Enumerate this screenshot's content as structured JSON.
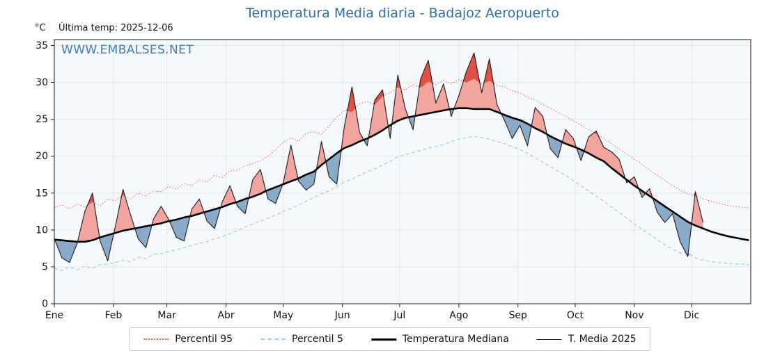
{
  "header": {
    "title": "Temperatura Media diaria - Badajoz Aeropuerto",
    "unit_label": "°C",
    "last_temp_label": "Última temp: 2025-12-06",
    "watermark": "WWW.EMBALSES.NET"
  },
  "colors": {
    "title": "#2e6ea6",
    "watermark": "#2e6ea6",
    "p95_line": "#e15759",
    "p5_line": "#9ecae1",
    "median_line": "#000000",
    "media2025_line": "#1a1a1a",
    "fill_above": "#f2a49e",
    "fill_above_extreme": "#dd5146",
    "fill_below": "#8aaac9",
    "fill_below_extreme": "#5f86b5",
    "grid": "#dfe6ed",
    "plot_bg": "#f6f9fc"
  },
  "chart_data": {
    "type": "line",
    "title": "Temperatura Media diaria - Badajoz Aeropuerto",
    "xlabel": "",
    "ylabel": "°C",
    "ylim": [
      0,
      35.8
    ],
    "yticks": [
      0,
      5,
      10,
      15,
      20,
      25,
      30,
      35
    ],
    "x_unit": "day_of_year",
    "x_range_days": [
      0,
      365
    ],
    "x_step_days": 4,
    "month_labels": [
      "Ene",
      "Feb",
      "Mar",
      "Abr",
      "May",
      "Jun",
      "Jul",
      "Ago",
      "Sep",
      "Oct",
      "Nov",
      "Dic"
    ],
    "month_start_days": [
      0,
      31,
      59,
      90,
      120,
      151,
      181,
      212,
      243,
      273,
      304,
      334
    ],
    "last_observation": "2025-12-06",
    "legend_position": "bottom-center",
    "grid": true,
    "series": [
      {
        "key": "p95",
        "name": "Percentil 95",
        "values": [
          13.0,
          13.4,
          12.9,
          13.5,
          13.1,
          13.8,
          13.3,
          14.1,
          14.0,
          14.7,
          14.2,
          15.0,
          14.6,
          15.3,
          15.2,
          15.9,
          15.5,
          16.3,
          16.0,
          16.8,
          16.5,
          17.4,
          17.1,
          18.0,
          18.1,
          18.7,
          19.0,
          19.4,
          20.0,
          20.9,
          21.9,
          22.5,
          22.0,
          23.1,
          23.3,
          23.0,
          24.1,
          25.3,
          26.2,
          26.0,
          27.1,
          27.4,
          27.0,
          28.1,
          28.6,
          29.3,
          29.0,
          29.7,
          29.3,
          30.1,
          29.7,
          30.3,
          29.8,
          30.4,
          30.0,
          30.5,
          29.8,
          30.2,
          29.6,
          29.4,
          28.9,
          28.6,
          28.0,
          27.6,
          27.0,
          26.5,
          25.9,
          25.4,
          24.8,
          24.2,
          23.6,
          23.0,
          22.4,
          21.7,
          21.0,
          20.3,
          19.6,
          18.9,
          18.1,
          17.4,
          16.7,
          16.0,
          15.4,
          14.9,
          14.6,
          14.2,
          13.9,
          13.6,
          13.4,
          13.2,
          13.1,
          13.0
        ]
      },
      {
        "key": "p5",
        "name": "Percentil 5",
        "values": [
          4.8,
          4.5,
          5.0,
          4.6,
          5.1,
          4.8,
          5.3,
          5.4,
          5.6,
          5.9,
          5.7,
          6.3,
          6.1,
          6.7,
          6.8,
          7.1,
          7.3,
          7.6,
          7.9,
          8.2,
          8.4,
          8.8,
          9.1,
          9.5,
          9.9,
          10.4,
          10.8,
          11.2,
          11.6,
          12.0,
          12.5,
          12.9,
          13.4,
          13.9,
          14.4,
          14.9,
          15.3,
          15.9,
          16.5,
          16.9,
          17.4,
          17.9,
          18.3,
          18.8,
          19.3,
          19.9,
          20.2,
          20.5,
          20.8,
          21.1,
          21.3,
          21.6,
          22.0,
          22.3,
          22.5,
          22.7,
          22.5,
          22.3,
          22.0,
          21.7,
          21.3,
          20.9,
          20.4,
          19.8,
          19.2,
          18.6,
          18.0,
          17.4,
          16.7,
          16.0,
          15.3,
          14.6,
          13.9,
          13.1,
          12.4,
          11.6,
          10.8,
          10.1,
          9.4,
          8.7,
          8.0,
          7.4,
          6.9,
          6.9,
          6.2,
          5.9,
          5.7,
          5.6,
          5.5,
          5.4,
          5.4,
          5.3
        ]
      },
      {
        "key": "median",
        "name": "Temperatura Mediana",
        "values": [
          8.7,
          8.6,
          8.5,
          8.4,
          8.4,
          8.6,
          9.0,
          9.3,
          9.6,
          9.9,
          10.1,
          10.3,
          10.5,
          10.7,
          10.9,
          11.2,
          11.4,
          11.7,
          11.9,
          12.2,
          12.5,
          12.8,
          13.1,
          13.5,
          13.8,
          14.2,
          14.5,
          14.9,
          15.4,
          15.8,
          16.2,
          16.6,
          17.0,
          17.5,
          17.9,
          18.8,
          19.6,
          20.4,
          21.1,
          21.5,
          22.0,
          22.4,
          22.9,
          23.5,
          24.2,
          24.8,
          25.2,
          25.4,
          25.6,
          25.8,
          26.0,
          26.2,
          26.4,
          26.5,
          26.5,
          26.4,
          26.4,
          26.4,
          26.0,
          25.6,
          25.2,
          24.9,
          24.4,
          23.8,
          23.3,
          22.7,
          22.2,
          21.7,
          21.3,
          20.9,
          20.4,
          19.8,
          19.3,
          18.4,
          17.6,
          16.8,
          16.0,
          15.3,
          14.6,
          13.9,
          13.2,
          12.5,
          11.8,
          11.1,
          10.6,
          10.2,
          9.8,
          9.5,
          9.2,
          9.0,
          8.8,
          8.6
        ]
      },
      {
        "key": "media2025",
        "name": "T. Media 2025",
        "values": [
          8.8,
          6.2,
          5.6,
          8.2,
          12.5,
          15.0,
          8.5,
          5.8,
          10.5,
          15.5,
          12.0,
          8.8,
          7.6,
          11.5,
          13.2,
          11.4,
          9.0,
          8.5,
          12.8,
          14.2,
          11.2,
          10.2,
          13.8,
          16.0,
          13.2,
          12.2,
          16.8,
          18.2,
          14.2,
          13.6,
          16.4,
          21.5,
          16.6,
          15.4,
          16.2,
          22.0,
          17.2,
          16.2,
          24.0,
          29.4,
          23.2,
          21.4,
          27.6,
          29.0,
          22.4,
          31.0,
          26.4,
          23.6,
          30.5,
          33.0,
          27.2,
          29.8,
          25.4,
          28.2,
          31.5,
          34.0,
          28.6,
          33.2,
          27.0,
          24.8,
          22.4,
          24.2,
          21.4,
          26.6,
          25.4,
          21.0,
          19.8,
          23.6,
          22.4,
          19.4,
          22.6,
          23.4,
          21.2,
          20.6,
          19.6,
          16.4,
          17.2,
          14.4,
          15.6,
          12.4,
          11.0,
          12.2,
          8.4,
          6.4,
          15.2,
          11.0,
          null,
          null,
          null,
          null,
          null,
          null
        ]
      }
    ]
  }
}
